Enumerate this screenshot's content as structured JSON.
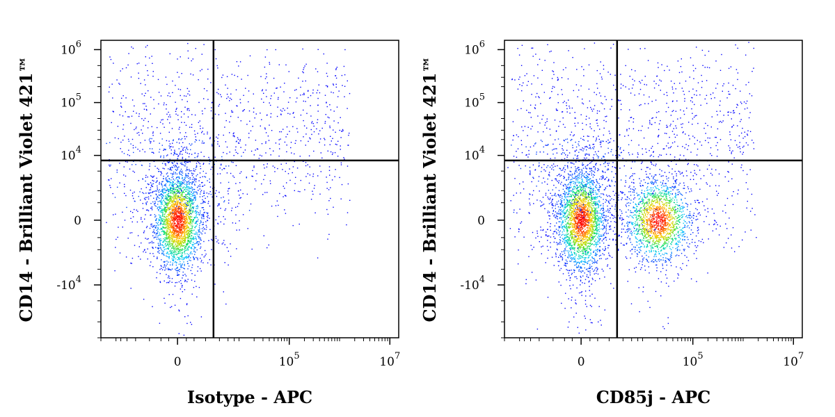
{
  "chart_data": [
    {
      "type": "scatter",
      "subtype": "flow-cytometry-density-dot-plot",
      "title": "",
      "xlabel": "Isotype - APC",
      "ylabel": "CD14 - Brilliant Violet 421™",
      "x_scale": "biexponential",
      "y_scale": "biexponential",
      "x_ticks": [
        {
          "value": 0,
          "base": "0",
          "exp": ""
        },
        {
          "value": 100000,
          "base": "10",
          "exp": "5"
        },
        {
          "value": 10000000,
          "base": "10",
          "exp": "7"
        }
      ],
      "y_ticks": [
        {
          "value": 1000000,
          "base": "10",
          "exp": "6"
        },
        {
          "value": 100000,
          "base": "10",
          "exp": "5"
        },
        {
          "value": 10000,
          "base": "10",
          "exp": "4"
        },
        {
          "value": 0,
          "base": "0",
          "exp": ""
        },
        {
          "value": -10000,
          "base": "-10",
          "exp": "4"
        }
      ],
      "quadrant_gate": {
        "x": 3000,
        "y": 8000
      },
      "grid": false,
      "legend": "none",
      "density_colors": [
        "#0000ff",
        "#00c8ff",
        "#00dd66",
        "#aadd00",
        "#ffcc00",
        "#ff5500",
        "#ff0000"
      ],
      "populations": [
        {
          "x_center": 0,
          "y_center": 0,
          "density": "high",
          "description_shown": false
        }
      ]
    },
    {
      "type": "scatter",
      "subtype": "flow-cytometry-density-dot-plot",
      "title": "",
      "xlabel": "CD85j - APC",
      "ylabel": "CD14 - Brilliant Violet 421™",
      "x_scale": "biexponential",
      "y_scale": "biexponential",
      "x_ticks": [
        {
          "value": 0,
          "base": "0",
          "exp": ""
        },
        {
          "value": 100000,
          "base": "10",
          "exp": "5"
        },
        {
          "value": 10000000,
          "base": "10",
          "exp": "7"
        }
      ],
      "y_ticks": [
        {
          "value": 1000000,
          "base": "10",
          "exp": "6"
        },
        {
          "value": 100000,
          "base": "10",
          "exp": "5"
        },
        {
          "value": 10000,
          "base": "10",
          "exp": "4"
        },
        {
          "value": 0,
          "base": "0",
          "exp": ""
        },
        {
          "value": -10000,
          "base": "-10",
          "exp": "4"
        }
      ],
      "quadrant_gate": {
        "x": 3000,
        "y": 8000
      },
      "grid": false,
      "legend": "none",
      "density_colors": [
        "#0000ff",
        "#00c8ff",
        "#00dd66",
        "#aadd00",
        "#ffcc00",
        "#ff5500",
        "#ff0000"
      ],
      "populations": [
        {
          "x_center": 0,
          "y_center": 0,
          "density": "high"
        },
        {
          "x_center": 20000,
          "y_center": 0,
          "density": "medium"
        }
      ]
    }
  ]
}
